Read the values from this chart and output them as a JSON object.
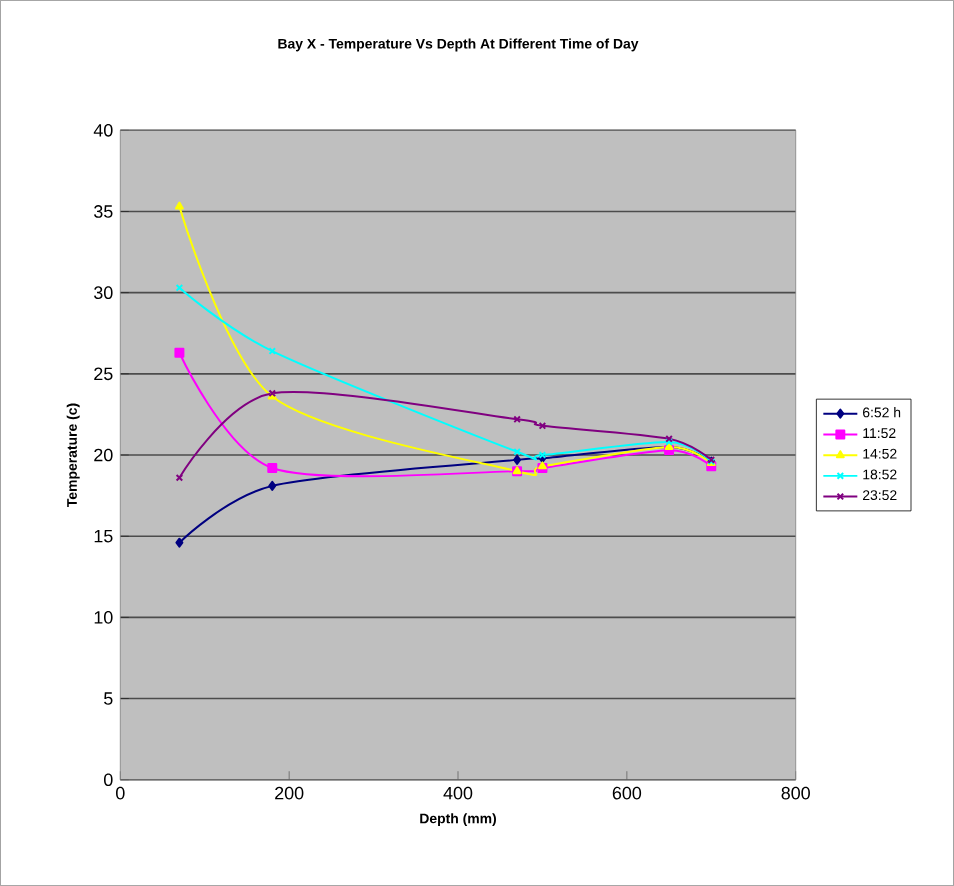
{
  "chart_data": {
    "type": "line",
    "title": "Bay X - Temperature Vs Depth At Different Time of Day",
    "xlabel": "Depth (mm)",
    "ylabel": "Temperature (c)",
    "xlim": [
      0,
      800
    ],
    "xticks": [
      0,
      200,
      400,
      600,
      800
    ],
    "ylim": [
      0,
      40
    ],
    "yticks": [
      0,
      5,
      10,
      15,
      20,
      25,
      30,
      35,
      40
    ],
    "grid": "y",
    "legend": "right",
    "series": [
      {
        "name": "6:52 h",
        "color": "#000080",
        "marker": "diamond",
        "x": [
          70,
          180,
          470,
          500,
          650,
          700
        ],
        "values": [
          14.6,
          18.1,
          19.7,
          19.8,
          20.5,
          19.6
        ]
      },
      {
        "name": "11:52",
        "color": "#ff00ff",
        "marker": "square",
        "x": [
          70,
          180,
          470,
          500,
          650,
          700
        ],
        "values": [
          26.3,
          19.2,
          19.0,
          19.2,
          20.3,
          19.3
        ]
      },
      {
        "name": "14:52",
        "color": "#ffff00",
        "marker": "triangle",
        "x": [
          70,
          180,
          470,
          500,
          650,
          700
        ],
        "values": [
          35.3,
          23.6,
          19.0,
          19.3,
          20.5,
          19.5
        ]
      },
      {
        "name": "18:52",
        "color": "#00ffff",
        "marker": "cross",
        "x": [
          70,
          180,
          470,
          500,
          650,
          700
        ],
        "values": [
          30.3,
          26.4,
          20.2,
          20.0,
          20.8,
          19.6
        ]
      },
      {
        "name": "23:52",
        "color": "#800080",
        "marker": "cross",
        "x": [
          70,
          180,
          470,
          500,
          650,
          700
        ],
        "values": [
          18.6,
          23.8,
          22.2,
          21.8,
          21.0,
          19.7
        ]
      }
    ]
  }
}
